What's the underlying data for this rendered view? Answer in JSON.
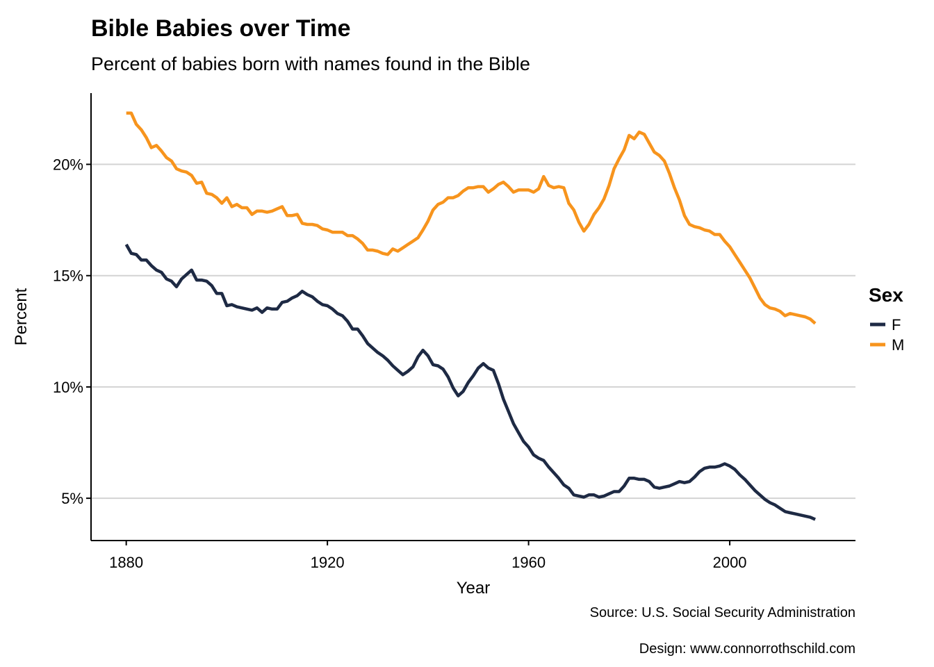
{
  "chart_data": {
    "type": "line",
    "title": "Bible Babies over Time",
    "subtitle": "Percent of babies born with names found in the Bible",
    "xlabel": "Year",
    "ylabel": "Percent",
    "xlim": [
      1873,
      2025
    ],
    "ylim": [
      3.1,
      23.2
    ],
    "x_ticks": [
      1880,
      1920,
      1960,
      2000
    ],
    "x_tick_labels": [
      "1880",
      "1920",
      "1960",
      "2000"
    ],
    "y_ticks": [
      5,
      10,
      15,
      20
    ],
    "y_tick_labels": [
      "5%",
      "10%",
      "15%",
      "20%"
    ],
    "grid": "horizontal major",
    "legend": {
      "title": "Sex",
      "position": "right"
    },
    "captions": [
      "Source: U.S. Social Security Administration",
      "Design: www.connorrothschild.com"
    ],
    "series": [
      {
        "name": "F",
        "color": "#1e2a44",
        "points": [
          [
            1880,
            16.4
          ],
          [
            1881,
            16.0
          ],
          [
            1882,
            15.95
          ],
          [
            1883,
            15.7
          ],
          [
            1884,
            15.7
          ],
          [
            1885,
            15.45
          ],
          [
            1886,
            15.25
          ],
          [
            1887,
            15.15
          ],
          [
            1888,
            14.85
          ],
          [
            1889,
            14.75
          ],
          [
            1890,
            14.5
          ],
          [
            1891,
            14.85
          ],
          [
            1892,
            15.05
          ],
          [
            1893,
            15.25
          ],
          [
            1894,
            14.8
          ],
          [
            1895,
            14.8
          ],
          [
            1896,
            14.75
          ],
          [
            1897,
            14.55
          ],
          [
            1898,
            14.2
          ],
          [
            1899,
            14.2
          ],
          [
            1900,
            13.65
          ],
          [
            1901,
            13.7
          ],
          [
            1902,
            13.6
          ],
          [
            1903,
            13.55
          ],
          [
            1904,
            13.5
          ],
          [
            1905,
            13.45
          ],
          [
            1906,
            13.55
          ],
          [
            1907,
            13.35
          ],
          [
            1908,
            13.55
          ],
          [
            1909,
            13.5
          ],
          [
            1910,
            13.5
          ],
          [
            1911,
            13.8
          ],
          [
            1912,
            13.85
          ],
          [
            1913,
            14.0
          ],
          [
            1914,
            14.1
          ],
          [
            1915,
            14.3
          ],
          [
            1916,
            14.15
          ],
          [
            1917,
            14.05
          ],
          [
            1918,
            13.85
          ],
          [
            1919,
            13.7
          ],
          [
            1920,
            13.65
          ],
          [
            1921,
            13.5
          ],
          [
            1922,
            13.3
          ],
          [
            1923,
            13.2
          ],
          [
            1924,
            12.95
          ],
          [
            1925,
            12.6
          ],
          [
            1926,
            12.6
          ],
          [
            1927,
            12.3
          ],
          [
            1928,
            11.95
          ],
          [
            1929,
            11.75
          ],
          [
            1930,
            11.55
          ],
          [
            1931,
            11.4
          ],
          [
            1932,
            11.2
          ],
          [
            1933,
            10.95
          ],
          [
            1934,
            10.75
          ],
          [
            1935,
            10.55
          ],
          [
            1936,
            10.7
          ],
          [
            1937,
            10.9
          ],
          [
            1938,
            11.35
          ],
          [
            1939,
            11.65
          ],
          [
            1940,
            11.4
          ],
          [
            1941,
            11.0
          ],
          [
            1942,
            10.95
          ],
          [
            1943,
            10.8
          ],
          [
            1944,
            10.45
          ],
          [
            1945,
            9.95
          ],
          [
            1946,
            9.6
          ],
          [
            1947,
            9.8
          ],
          [
            1948,
            10.2
          ],
          [
            1949,
            10.5
          ],
          [
            1950,
            10.85
          ],
          [
            1951,
            11.05
          ],
          [
            1952,
            10.85
          ],
          [
            1953,
            10.75
          ],
          [
            1954,
            10.15
          ],
          [
            1955,
            9.45
          ],
          [
            1956,
            8.9
          ],
          [
            1957,
            8.35
          ],
          [
            1958,
            7.95
          ],
          [
            1959,
            7.55
          ],
          [
            1960,
            7.3
          ],
          [
            1961,
            6.95
          ],
          [
            1962,
            6.8
          ],
          [
            1963,
            6.7
          ],
          [
            1964,
            6.4
          ],
          [
            1965,
            6.15
          ],
          [
            1966,
            5.9
          ],
          [
            1967,
            5.6
          ],
          [
            1968,
            5.45
          ],
          [
            1969,
            5.15
          ],
          [
            1970,
            5.1
          ],
          [
            1971,
            5.05
          ],
          [
            1972,
            5.15
          ],
          [
            1973,
            5.15
          ],
          [
            1974,
            5.05
          ],
          [
            1975,
            5.1
          ],
          [
            1976,
            5.2
          ],
          [
            1977,
            5.3
          ],
          [
            1978,
            5.3
          ],
          [
            1979,
            5.55
          ],
          [
            1980,
            5.9
          ],
          [
            1981,
            5.9
          ],
          [
            1982,
            5.85
          ],
          [
            1983,
            5.85
          ],
          [
            1984,
            5.75
          ],
          [
            1985,
            5.5
          ],
          [
            1986,
            5.45
          ],
          [
            1987,
            5.5
          ],
          [
            1988,
            5.55
          ],
          [
            1989,
            5.65
          ],
          [
            1990,
            5.75
          ],
          [
            1991,
            5.7
          ],
          [
            1992,
            5.75
          ],
          [
            1993,
            5.95
          ],
          [
            1994,
            6.2
          ],
          [
            1995,
            6.35
          ],
          [
            1996,
            6.4
          ],
          [
            1997,
            6.4
          ],
          [
            1998,
            6.45
          ],
          [
            1999,
            6.55
          ],
          [
            2000,
            6.45
          ],
          [
            2001,
            6.3
          ],
          [
            2002,
            6.05
          ],
          [
            2003,
            5.85
          ],
          [
            2004,
            5.6
          ],
          [
            2005,
            5.35
          ],
          [
            2006,
            5.15
          ],
          [
            2007,
            4.95
          ],
          [
            2008,
            4.8
          ],
          [
            2009,
            4.7
          ],
          [
            2010,
            4.55
          ],
          [
            2011,
            4.4
          ],
          [
            2012,
            4.35
          ],
          [
            2013,
            4.3
          ],
          [
            2014,
            4.25
          ],
          [
            2015,
            4.2
          ],
          [
            2016,
            4.15
          ],
          [
            2017,
            4.05
          ]
        ]
      },
      {
        "name": "M",
        "color": "#f7941d",
        "points": [
          [
            1880,
            22.3
          ],
          [
            1881,
            22.3
          ],
          [
            1882,
            21.8
          ],
          [
            1883,
            21.55
          ],
          [
            1884,
            21.2
          ],
          [
            1885,
            20.75
          ],
          [
            1886,
            20.85
          ],
          [
            1887,
            20.6
          ],
          [
            1888,
            20.3
          ],
          [
            1889,
            20.15
          ],
          [
            1890,
            19.8
          ],
          [
            1891,
            19.7
          ],
          [
            1892,
            19.65
          ],
          [
            1893,
            19.5
          ],
          [
            1894,
            19.15
          ],
          [
            1895,
            19.2
          ],
          [
            1896,
            18.7
          ],
          [
            1897,
            18.65
          ],
          [
            1898,
            18.5
          ],
          [
            1899,
            18.25
          ],
          [
            1900,
            18.5
          ],
          [
            1901,
            18.1
          ],
          [
            1902,
            18.2
          ],
          [
            1903,
            18.05
          ],
          [
            1904,
            18.05
          ],
          [
            1905,
            17.75
          ],
          [
            1906,
            17.9
          ],
          [
            1907,
            17.9
          ],
          [
            1908,
            17.85
          ],
          [
            1909,
            17.9
          ],
          [
            1910,
            18.0
          ],
          [
            1911,
            18.1
          ],
          [
            1912,
            17.7
          ],
          [
            1913,
            17.7
          ],
          [
            1914,
            17.75
          ],
          [
            1915,
            17.35
          ],
          [
            1916,
            17.3
          ],
          [
            1917,
            17.3
          ],
          [
            1918,
            17.25
          ],
          [
            1919,
            17.1
          ],
          [
            1920,
            17.05
          ],
          [
            1921,
            16.95
          ],
          [
            1922,
            16.95
          ],
          [
            1923,
            16.95
          ],
          [
            1924,
            16.8
          ],
          [
            1925,
            16.8
          ],
          [
            1926,
            16.65
          ],
          [
            1927,
            16.45
          ],
          [
            1928,
            16.15
          ],
          [
            1929,
            16.15
          ],
          [
            1930,
            16.1
          ],
          [
            1931,
            16.0
          ],
          [
            1932,
            15.95
          ],
          [
            1933,
            16.2
          ],
          [
            1934,
            16.1
          ],
          [
            1935,
            16.25
          ],
          [
            1936,
            16.4
          ],
          [
            1937,
            16.55
          ],
          [
            1938,
            16.7
          ],
          [
            1939,
            17.05
          ],
          [
            1940,
            17.45
          ],
          [
            1941,
            17.95
          ],
          [
            1942,
            18.2
          ],
          [
            1943,
            18.3
          ],
          [
            1944,
            18.5
          ],
          [
            1945,
            18.5
          ],
          [
            1946,
            18.6
          ],
          [
            1947,
            18.8
          ],
          [
            1948,
            18.95
          ],
          [
            1949,
            18.95
          ],
          [
            1950,
            19.0
          ],
          [
            1951,
            19.0
          ],
          [
            1952,
            18.75
          ],
          [
            1953,
            18.9
          ],
          [
            1954,
            19.1
          ],
          [
            1955,
            19.2
          ],
          [
            1956,
            19.0
          ],
          [
            1957,
            18.75
          ],
          [
            1958,
            18.85
          ],
          [
            1959,
            18.85
          ],
          [
            1960,
            18.85
          ],
          [
            1961,
            18.75
          ],
          [
            1962,
            18.9
          ],
          [
            1963,
            19.45
          ],
          [
            1964,
            19.05
          ],
          [
            1965,
            18.95
          ],
          [
            1966,
            19.0
          ],
          [
            1967,
            18.95
          ],
          [
            1968,
            18.25
          ],
          [
            1969,
            17.95
          ],
          [
            1970,
            17.4
          ],
          [
            1971,
            17.0
          ],
          [
            1972,
            17.3
          ],
          [
            1973,
            17.75
          ],
          [
            1974,
            18.05
          ],
          [
            1975,
            18.45
          ],
          [
            1976,
            19.05
          ],
          [
            1977,
            19.8
          ],
          [
            1978,
            20.25
          ],
          [
            1979,
            20.65
          ],
          [
            1980,
            21.3
          ],
          [
            1981,
            21.15
          ],
          [
            1982,
            21.45
          ],
          [
            1983,
            21.35
          ],
          [
            1984,
            20.95
          ],
          [
            1985,
            20.55
          ],
          [
            1986,
            20.4
          ],
          [
            1987,
            20.15
          ],
          [
            1988,
            19.6
          ],
          [
            1989,
            18.95
          ],
          [
            1990,
            18.4
          ],
          [
            1991,
            17.7
          ],
          [
            1992,
            17.3
          ],
          [
            1993,
            17.2
          ],
          [
            1994,
            17.15
          ],
          [
            1995,
            17.05
          ],
          [
            1996,
            17.0
          ],
          [
            1997,
            16.85
          ],
          [
            1998,
            16.85
          ],
          [
            1999,
            16.55
          ],
          [
            2000,
            16.3
          ],
          [
            2001,
            15.95
          ],
          [
            2002,
            15.6
          ],
          [
            2003,
            15.25
          ],
          [
            2004,
            14.9
          ],
          [
            2005,
            14.45
          ],
          [
            2006,
            14.0
          ],
          [
            2007,
            13.7
          ],
          [
            2008,
            13.55
          ],
          [
            2009,
            13.5
          ],
          [
            2010,
            13.4
          ],
          [
            2011,
            13.2
          ],
          [
            2012,
            13.3
          ],
          [
            2013,
            13.25
          ],
          [
            2014,
            13.2
          ],
          [
            2015,
            13.15
          ],
          [
            2016,
            13.05
          ],
          [
            2017,
            12.85
          ]
        ]
      }
    ]
  }
}
